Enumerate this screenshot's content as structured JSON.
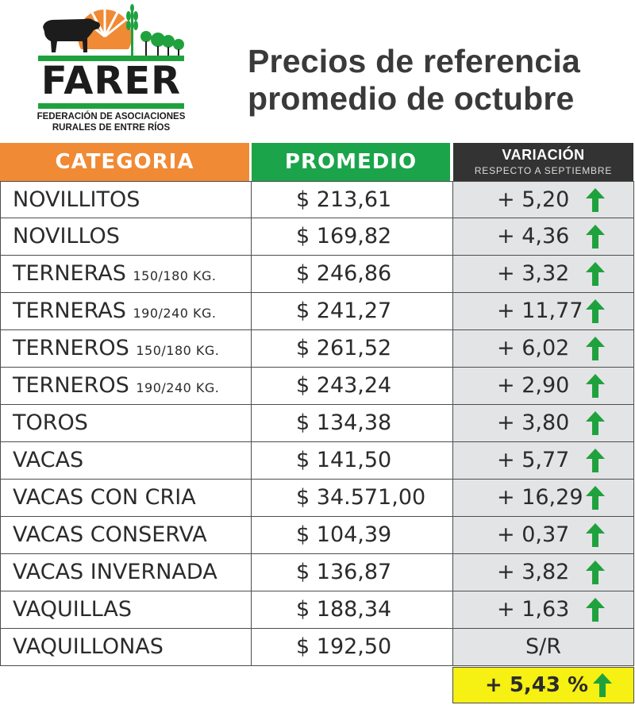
{
  "logo": {
    "name": "FARER",
    "subtitle_line1": "FEDERACIÓN DE ASOCIACIONES",
    "subtitle_line2": "RURALES DE ENTRE RÍOS"
  },
  "title": {
    "line1": "Precios de referencia",
    "line2": "promedio de octubre"
  },
  "table": {
    "headers": {
      "categoria": "CATEGORIA",
      "promedio": "PROMEDIO",
      "variacion": "VARIACIÓN",
      "variacion_sub": "RESPECTO A  SEPTIEMBRE"
    },
    "rows": [
      {
        "categoria": "NOVILLITOS",
        "sub": "",
        "promedio": "$ 213,61",
        "variacion": "+ 5,20",
        "trend": "up"
      },
      {
        "categoria": "NOVILLOS",
        "sub": "",
        "promedio": "$ 169,82",
        "variacion": "+ 4,36",
        "trend": "up"
      },
      {
        "categoria": "TERNERAS",
        "sub": "150/180 KG.",
        "promedio": "$ 246,86",
        "variacion": "+ 3,32",
        "trend": "up"
      },
      {
        "categoria": "TERNERAS",
        "sub": "190/240 KG.",
        "promedio": "$ 241,27",
        "variacion": "+ 11,77",
        "trend": "up"
      },
      {
        "categoria": "TERNEROS",
        "sub": "150/180 KG.",
        "promedio": "$ 261,52",
        "variacion": "+ 6,02",
        "trend": "up"
      },
      {
        "categoria": "TERNEROS",
        "sub": "190/240 KG.",
        "promedio": "$ 243,24",
        "variacion": "+ 2,90",
        "trend": "up"
      },
      {
        "categoria": "TOROS",
        "sub": "",
        "promedio": "$ 134,38",
        "variacion": "+ 3,80",
        "trend": "up"
      },
      {
        "categoria": "VACAS",
        "sub": "",
        "promedio": "$ 141,50",
        "variacion": "+ 5,77",
        "trend": "up"
      },
      {
        "categoria": "VACAS CON CRIA",
        "sub": "",
        "promedio": "$ 34.571,00",
        "variacion": "+ 16,29",
        "trend": "up"
      },
      {
        "categoria": "VACAS CONSERVA",
        "sub": "",
        "promedio": "$ 104,39",
        "variacion": "+ 0,37",
        "trend": "up"
      },
      {
        "categoria": "VACAS INVERNADA",
        "sub": "",
        "promedio": "$ 136,87",
        "variacion": "+ 3,82",
        "trend": "up"
      },
      {
        "categoria": "VAQUILLAS",
        "sub": "",
        "promedio": "$ 188,34",
        "variacion": "+ 1,63",
        "trend": "up"
      },
      {
        "categoria": "VAQUILLONAS",
        "sub": "",
        "promedio": "$ 192,50",
        "variacion": "S/R",
        "trend": "none"
      }
    ],
    "total": {
      "value": "+ 5,43 %",
      "trend": "up"
    }
  },
  "colors": {
    "categoria_header": "#f08a35",
    "promedio_header": "#1ba44a",
    "variacion_header": "#333333",
    "variacion_cell": "#e3e4e5",
    "total_bg": "#f6f013",
    "arrow": "#1fa23e"
  },
  "icons": {
    "trend_up": "arrow-up-icon",
    "logo": "cow-sun-wheat-logo"
  }
}
